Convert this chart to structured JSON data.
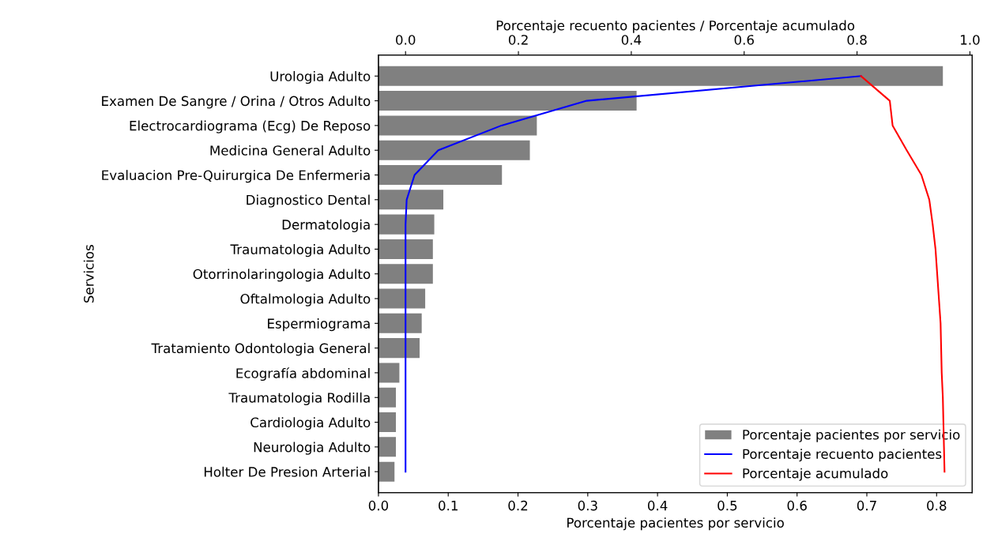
{
  "chart_data": {
    "type": "bar",
    "orientation": "horizontal",
    "ylabel": "Servicios",
    "xlabel": "Porcentaje pacientes por servicio",
    "x2label": "Porcentaje recuento pacientes / Porcentaje acumulado",
    "categories": [
      "Urologia Adulto",
      "Examen De Sangre / Orina / Otros Adulto",
      "Electrocardiograma (Ecg) De Reposo",
      "Medicina General Adulto",
      "Evaluacion Pre-Quirurgica De Enfermeria",
      "Diagnostico Dental",
      "Dermatologia",
      "Traumatologia Adulto",
      "Otorrinolaringologia Adulto",
      "Oftalmologia Adulto",
      "Espermiograma",
      "Tratamiento Odontologia General",
      "Ecografía abdominal",
      "Traumatologia Rodilla",
      "Cardiologia Adulto",
      "Neurologia Adulto",
      "Holter De Presion Arterial"
    ],
    "series": [
      {
        "name": "Porcentaje pacientes por servicio",
        "color": "#808080",
        "values": [
          0.809,
          0.37,
          0.227,
          0.217,
          0.177,
          0.093,
          0.08,
          0.078,
          0.078,
          0.067,
          0.062,
          0.059,
          0.03,
          0.025,
          0.025,
          0.025,
          0.023
        ]
      },
      {
        "name": "Porcentaje recuento pacientes",
        "type": "line",
        "axis": "x2",
        "color": "#0000ff",
        "values": [
          0.807,
          0.321,
          0.17,
          0.058,
          0.016,
          0.002,
          0.0,
          0.0,
          0.0,
          0.0,
          0.0,
          0.0,
          0.0,
          0.0,
          0.0,
          0.0,
          0.0
        ]
      },
      {
        "name": "Porcentaje acumulado",
        "type": "line",
        "axis": "x2",
        "color": "#ff0000",
        "values": [
          0.807,
          0.858,
          0.863,
          0.888,
          0.914,
          0.928,
          0.934,
          0.939,
          0.942,
          0.945,
          0.948,
          0.949,
          0.95,
          0.952,
          0.953,
          0.954,
          0.955
        ]
      }
    ],
    "xlim": [
      0,
      0.851
    ],
    "xticks": [
      {
        "value": 0,
        "label": "0.0"
      },
      0.1,
      0.2,
      0.3,
      0.4,
      0.5,
      0.6,
      0.7,
      0.8
    ],
    "x2lim": [
      -0.048,
      1.004
    ],
    "x2ticks": [
      {
        "value": 0,
        "label": "0.0"
      },
      0.2,
      0.4,
      0.6,
      0.8,
      {
        "value": 1,
        "label": "1.0"
      }
    ],
    "legend": "bottom right",
    "grid": false,
    "line_style": "solid",
    "marker": "none"
  }
}
